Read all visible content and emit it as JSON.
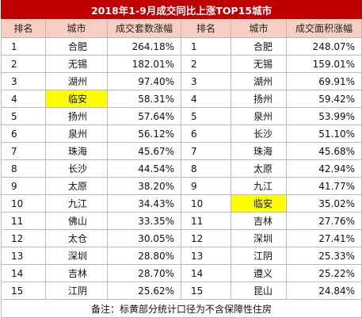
{
  "title": "2018年1-9月成交同比上涨TOP15城市",
  "headers": [
    "排名",
    "城市",
    "成交套数涨幅",
    "排名",
    "城市",
    "成交面积涨幅"
  ],
  "colors": {
    "title_bg": "#c00000",
    "header_bg": "#f6cfc2",
    "highlight": "#ffff00"
  },
  "rows": [
    {
      "l_rank": "1",
      "l_city": "合肥",
      "l_val": "264.18%",
      "r_rank": "1",
      "r_city": "合肥",
      "r_val": "248.07%"
    },
    {
      "l_rank": "2",
      "l_city": "无锡",
      "l_val": "182.01%",
      "r_rank": "2",
      "r_city": "无锡",
      "r_val": "159.01%"
    },
    {
      "l_rank": "3",
      "l_city": "湖州",
      "l_val": "97.40%",
      "r_rank": "3",
      "r_city": "湖州",
      "r_val": "69.91%"
    },
    {
      "l_rank": "4",
      "l_city": "临安",
      "l_val": "58.31%",
      "r_rank": "4",
      "r_city": "扬州",
      "r_val": "59.42%"
    },
    {
      "l_rank": "5",
      "l_city": "扬州",
      "l_val": "57.64%",
      "r_rank": "5",
      "r_city": "泉州",
      "r_val": "53.99%"
    },
    {
      "l_rank": "6",
      "l_city": "泉州",
      "l_val": "56.12%",
      "r_rank": "6",
      "r_city": "长沙",
      "r_val": "51.10%"
    },
    {
      "l_rank": "7",
      "l_city": "珠海",
      "l_val": "45.67%",
      "r_rank": "7",
      "r_city": "珠海",
      "r_val": "45.68%"
    },
    {
      "l_rank": "8",
      "l_city": "长沙",
      "l_val": "44.54%",
      "r_rank": "8",
      "r_city": "太原",
      "r_val": "42.94%"
    },
    {
      "l_rank": "9",
      "l_city": "太原",
      "l_val": "38.20%",
      "r_rank": "9",
      "r_city": "九江",
      "r_val": "41.77%"
    },
    {
      "l_rank": "10",
      "l_city": "九江",
      "l_val": "34.43%",
      "r_rank": "10",
      "r_city": "临安",
      "r_val": "35.02%"
    },
    {
      "l_rank": "11",
      "l_city": "佛山",
      "l_val": "33.35%",
      "r_rank": "11",
      "r_city": "吉林",
      "r_val": "27.76%"
    },
    {
      "l_rank": "12",
      "l_city": "太仓",
      "l_val": "30.05%",
      "r_rank": "12",
      "r_city": "深圳",
      "r_val": "27.41%"
    },
    {
      "l_rank": "13",
      "l_city": "深圳",
      "l_val": "28.80%",
      "r_rank": "13",
      "r_city": "江阴",
      "r_val": "25.33%"
    },
    {
      "l_rank": "14",
      "l_city": "吉林",
      "l_val": "28.70%",
      "r_rank": "14",
      "r_city": "遵义",
      "r_val": "25.22%"
    },
    {
      "l_rank": "15",
      "l_city": "江阴",
      "l_val": "25.62%",
      "r_rank": "15",
      "r_city": "昆山",
      "r_val": "24.84%"
    }
  ],
  "highlighted_city": "临安",
  "note": "备注：标黄部分统计口径为不含保障性住房"
}
